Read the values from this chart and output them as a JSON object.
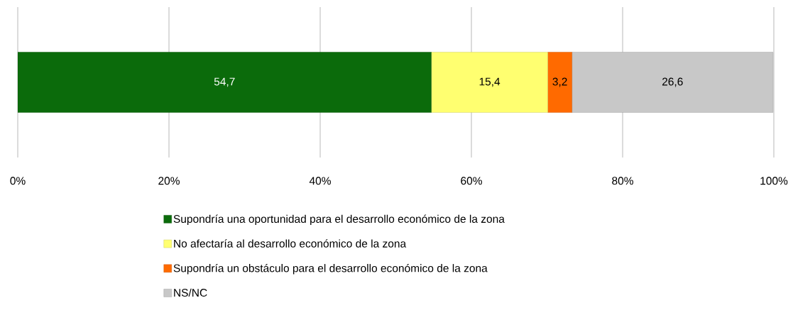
{
  "chart_data": {
    "type": "bar",
    "orientation": "horizontal",
    "stacked": true,
    "categories": [
      null
    ],
    "series": [
      {
        "name": "Supondría una oportunidad para el desarrollo económico de la zona",
        "color": "#0b6b0b",
        "values": [
          54.7
        ],
        "value_labels": [
          "54,7"
        ]
      },
      {
        "name": "No afectaría al desarrollo económico de la zona",
        "color": "#ffff70",
        "values": [
          15.4
        ],
        "value_labels": [
          "15,4"
        ]
      },
      {
        "name": "Supondría un obstáculo para el desarrollo económico de la zona",
        "color": "#ff6a00",
        "values": [
          3.2
        ],
        "value_labels": [
          "3,2"
        ]
      },
      {
        "name": "NS/NC",
        "color": "#c8c8c8",
        "values": [
          26.6
        ],
        "value_labels": [
          "26,6"
        ]
      }
    ],
    "xlim": [
      0,
      100
    ],
    "xticks": [
      {
        "value": 0,
        "label": "0%"
      },
      {
        "value": 20,
        "label": "20%"
      },
      {
        "value": 40,
        "label": "40%"
      },
      {
        "value": 60,
        "label": "60%"
      },
      {
        "value": 80,
        "label": "80%"
      },
      {
        "value": 100,
        "label": "100%"
      }
    ],
    "grid": "x",
    "legend": "bottom"
  }
}
